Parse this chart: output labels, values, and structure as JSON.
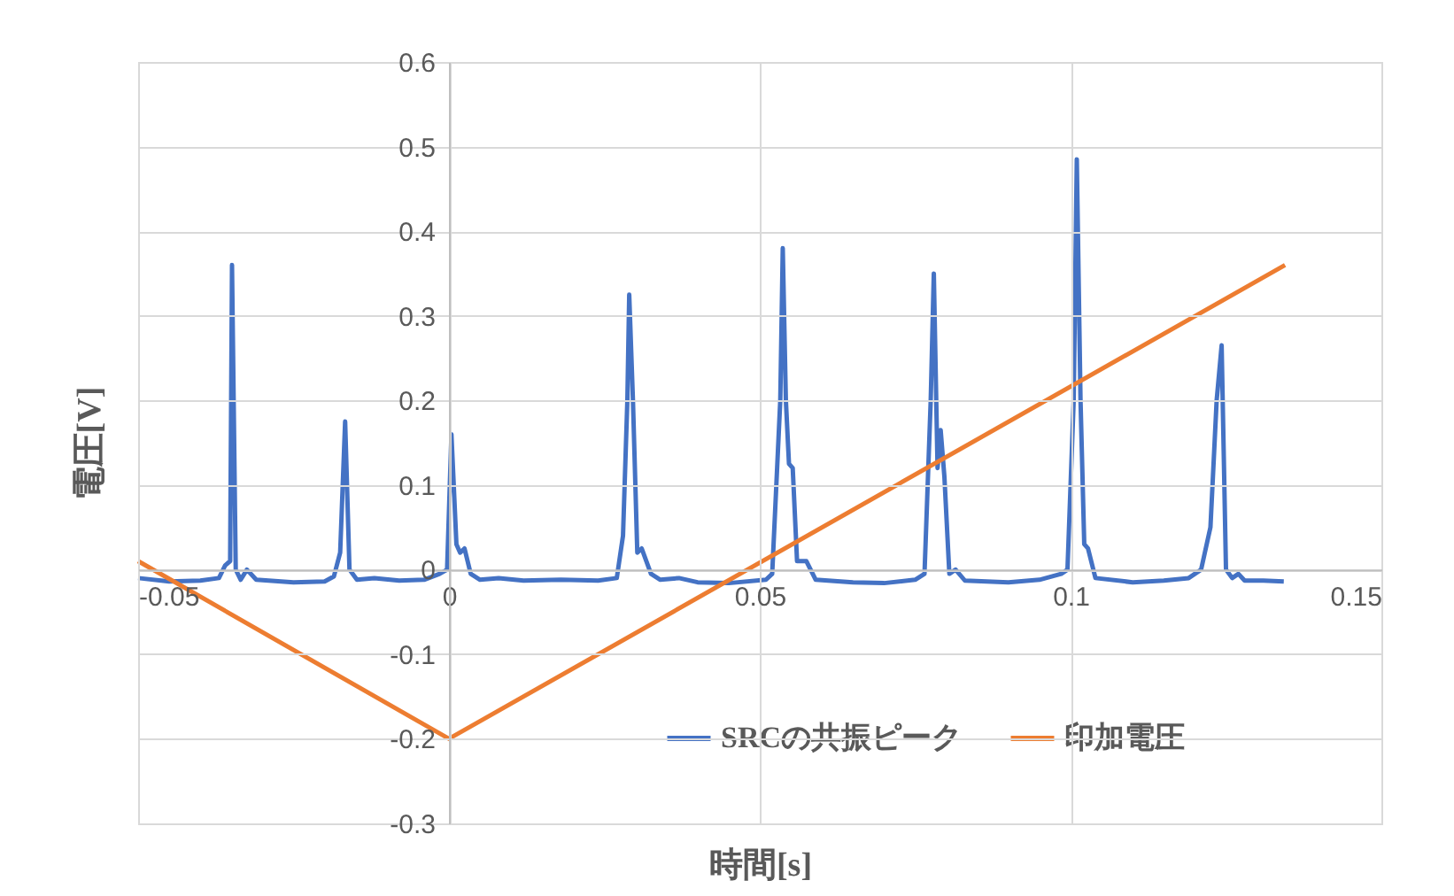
{
  "chart_data": {
    "type": "line",
    "xlabel": "時間[s]",
    "ylabel": "電圧[V]",
    "xlim": [
      -0.05,
      0.15
    ],
    "xticks": [
      -0.05,
      0,
      0.05,
      0.1,
      0.15
    ],
    "ylim": [
      -0.3,
      0.6
    ],
    "yticks": [
      -0.3,
      -0.2,
      -0.1,
      0,
      0.1,
      0.2,
      0.3,
      0.4,
      0.5,
      0.6
    ],
    "grid": true,
    "legend": "bottom right",
    "line_style": "solid",
    "series": [
      {
        "name": "SRCの共振ピーク",
        "color": "#4472c4",
        "x": [
          -0.05,
          -0.045,
          -0.04,
          -0.037,
          -0.036,
          -0.0352,
          -0.0349,
          -0.0343,
          -0.0335,
          -0.0325,
          -0.031,
          -0.025,
          -0.02,
          -0.0185,
          -0.0175,
          -0.0167,
          -0.016,
          -0.0148,
          -0.012,
          -0.008,
          -0.004,
          -0.0015,
          -0.0003,
          0.0004,
          0.0012,
          0.0018,
          0.0025,
          0.0035,
          0.005,
          0.008,
          0.012,
          0.018,
          0.024,
          0.027,
          0.028,
          0.0287,
          0.029,
          0.0296,
          0.0303,
          0.031,
          0.0325,
          0.034,
          0.037,
          0.04,
          0.045,
          0.051,
          0.052,
          0.0533,
          0.0537,
          0.0542,
          0.0547,
          0.0553,
          0.056,
          0.0575,
          0.059,
          0.065,
          0.07,
          0.075,
          0.0765,
          0.0775,
          0.078,
          0.0786,
          0.0791,
          0.0797,
          0.0805,
          0.0815,
          0.083,
          0.09,
          0.095,
          0.0985,
          0.0995,
          0.1005,
          0.101,
          0.1016,
          0.1022,
          0.1028,
          0.104,
          0.11,
          0.115,
          0.119,
          0.121,
          0.1225,
          0.1235,
          0.1243,
          0.125,
          0.126,
          0.127,
          0.128,
          0.131,
          0.1343
        ],
        "values": [
          -0.01,
          -0.014,
          -0.013,
          -0.01,
          0.005,
          0.01,
          0.36,
          0.0,
          -0.012,
          0.0,
          -0.012,
          -0.015,
          -0.014,
          -0.008,
          0.02,
          0.175,
          0.0,
          -0.012,
          -0.01,
          -0.013,
          -0.012,
          -0.005,
          0.0,
          0.16,
          0.03,
          0.02,
          0.025,
          -0.005,
          -0.012,
          -0.01,
          -0.013,
          -0.012,
          -0.013,
          -0.01,
          0.04,
          0.2,
          0.325,
          0.2,
          0.02,
          0.025,
          -0.005,
          -0.012,
          -0.01,
          -0.015,
          -0.016,
          -0.012,
          -0.005,
          0.2,
          0.38,
          0.2,
          0.125,
          0.12,
          0.01,
          0.01,
          -0.012,
          -0.015,
          -0.016,
          -0.012,
          -0.005,
          0.2,
          0.35,
          0.12,
          0.165,
          0.11,
          -0.005,
          0.0,
          -0.013,
          -0.015,
          -0.012,
          -0.005,
          0.0,
          0.2,
          0.485,
          0.2,
          0.03,
          0.025,
          -0.01,
          -0.015,
          -0.013,
          -0.01,
          0.0,
          0.05,
          0.2,
          0.265,
          0.0,
          -0.01,
          -0.005,
          -0.013,
          -0.013,
          -0.014
        ]
      },
      {
        "name": "印加電圧",
        "color": "#ed7d31",
        "x": [
          -0.05,
          0,
          0.1345
        ],
        "values": [
          0.01,
          -0.2,
          0.36
        ]
      }
    ]
  }
}
